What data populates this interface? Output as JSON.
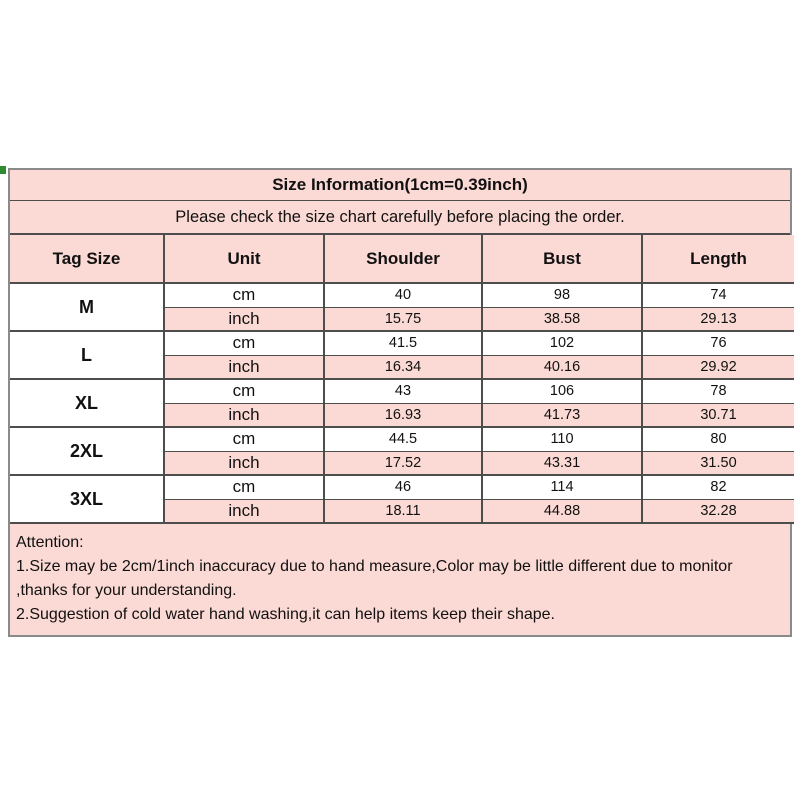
{
  "colors": {
    "pink": "#FBD9D4",
    "white": "#ffffff",
    "outer_border": "#8a8a8a",
    "inner_border": "#4d4d4d",
    "text": "#111111",
    "corner_artifact_green": "#2E8B2E"
  },
  "size_chart": {
    "title": "Size Information(1cm=0.39inch)",
    "subtitle": "Please check the size chart carefully before placing the order.",
    "columns": [
      "Tag Size",
      "Unit",
      "Shoulder",
      "Bust",
      "Length"
    ],
    "unit_labels": {
      "cm": "cm",
      "inch": "inch"
    },
    "rows": [
      {
        "tag": "M",
        "cm": [
          "40",
          "98",
          "74"
        ],
        "inch": [
          "15.75",
          "38.58",
          "29.13"
        ]
      },
      {
        "tag": "L",
        "cm": [
          "41.5",
          "102",
          "76"
        ],
        "inch": [
          "16.34",
          "40.16",
          "29.92"
        ]
      },
      {
        "tag": "XL",
        "cm": [
          "43",
          "106",
          "78"
        ],
        "inch": [
          "16.93",
          "41.73",
          "30.71"
        ]
      },
      {
        "tag": "2XL",
        "cm": [
          "44.5",
          "110",
          "80"
        ],
        "inch": [
          "17.52",
          "43.31",
          "31.50"
        ]
      },
      {
        "tag": "3XL",
        "cm": [
          "46",
          "114",
          "82"
        ],
        "inch": [
          "18.11",
          "44.88",
          "32.28"
        ]
      }
    ],
    "attention": {
      "heading": "Attention:",
      "lines": [
        "1.Size may be 2cm/1inch inaccuracy due to hand measure,Color may be little different due to monitor",
        ",thanks for your understanding.",
        "2.Suggestion of cold water hand washing,it can help items keep their shape."
      ]
    }
  }
}
